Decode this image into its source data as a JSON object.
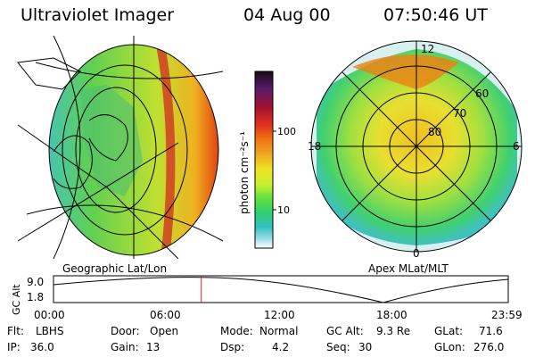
{
  "header": {
    "instrument": "Ultraviolet Imager",
    "date": "04 Aug 00",
    "time": "07:50:46 UT"
  },
  "geo_panel": {
    "caption": "Geographic Lat/Lon"
  },
  "apex_panel": {
    "caption": "Apex MLat/MLT",
    "mlt_labels": {
      "top": "12",
      "left": "18",
      "right": "6",
      "bottom": "0"
    },
    "lat_labels": [
      "60",
      "70",
      "80"
    ]
  },
  "colorbar": {
    "unit_label": "photon cm⁻²s⁻¹",
    "ticks": [
      "100",
      "10"
    ],
    "colors": [
      "#1a0a1a",
      "#5a1a6a",
      "#a01030",
      "#e03020",
      "#f07010",
      "#f0a020",
      "#f0e020",
      "#c8f030",
      "#60e040",
      "#30d070",
      "#30c0c0",
      "#a0e0e8",
      "#ffffff"
    ]
  },
  "timeline": {
    "axis_label": "GC Alt",
    "y_ticks": [
      "9.0",
      "1.8"
    ],
    "x_ticks": [
      "00:00",
      "06:00",
      "12:00",
      "18:00",
      "23:59"
    ],
    "current_time_fraction": 0.325
  },
  "info": {
    "filter": {
      "label": "Flt:",
      "value": "LBHS"
    },
    "door": {
      "label": "Door:",
      "value": "Open"
    },
    "mode": {
      "label": "Mode:",
      "value": "Normal"
    },
    "gc_alt": {
      "label": "GC Alt:",
      "value": "9.3 Re"
    },
    "glat": {
      "label": "GLat:",
      "value": "71.6"
    },
    "ip": {
      "label": "IP:",
      "value": "36.0"
    },
    "gain": {
      "label": "Gain:",
      "value": "13"
    },
    "dsp": {
      "label": "Dsp:",
      "value": "4.2"
    },
    "seq": {
      "label": "Seq:",
      "value": "30"
    },
    "glon": {
      "label": "GLon:",
      "value": "276.0"
    }
  }
}
